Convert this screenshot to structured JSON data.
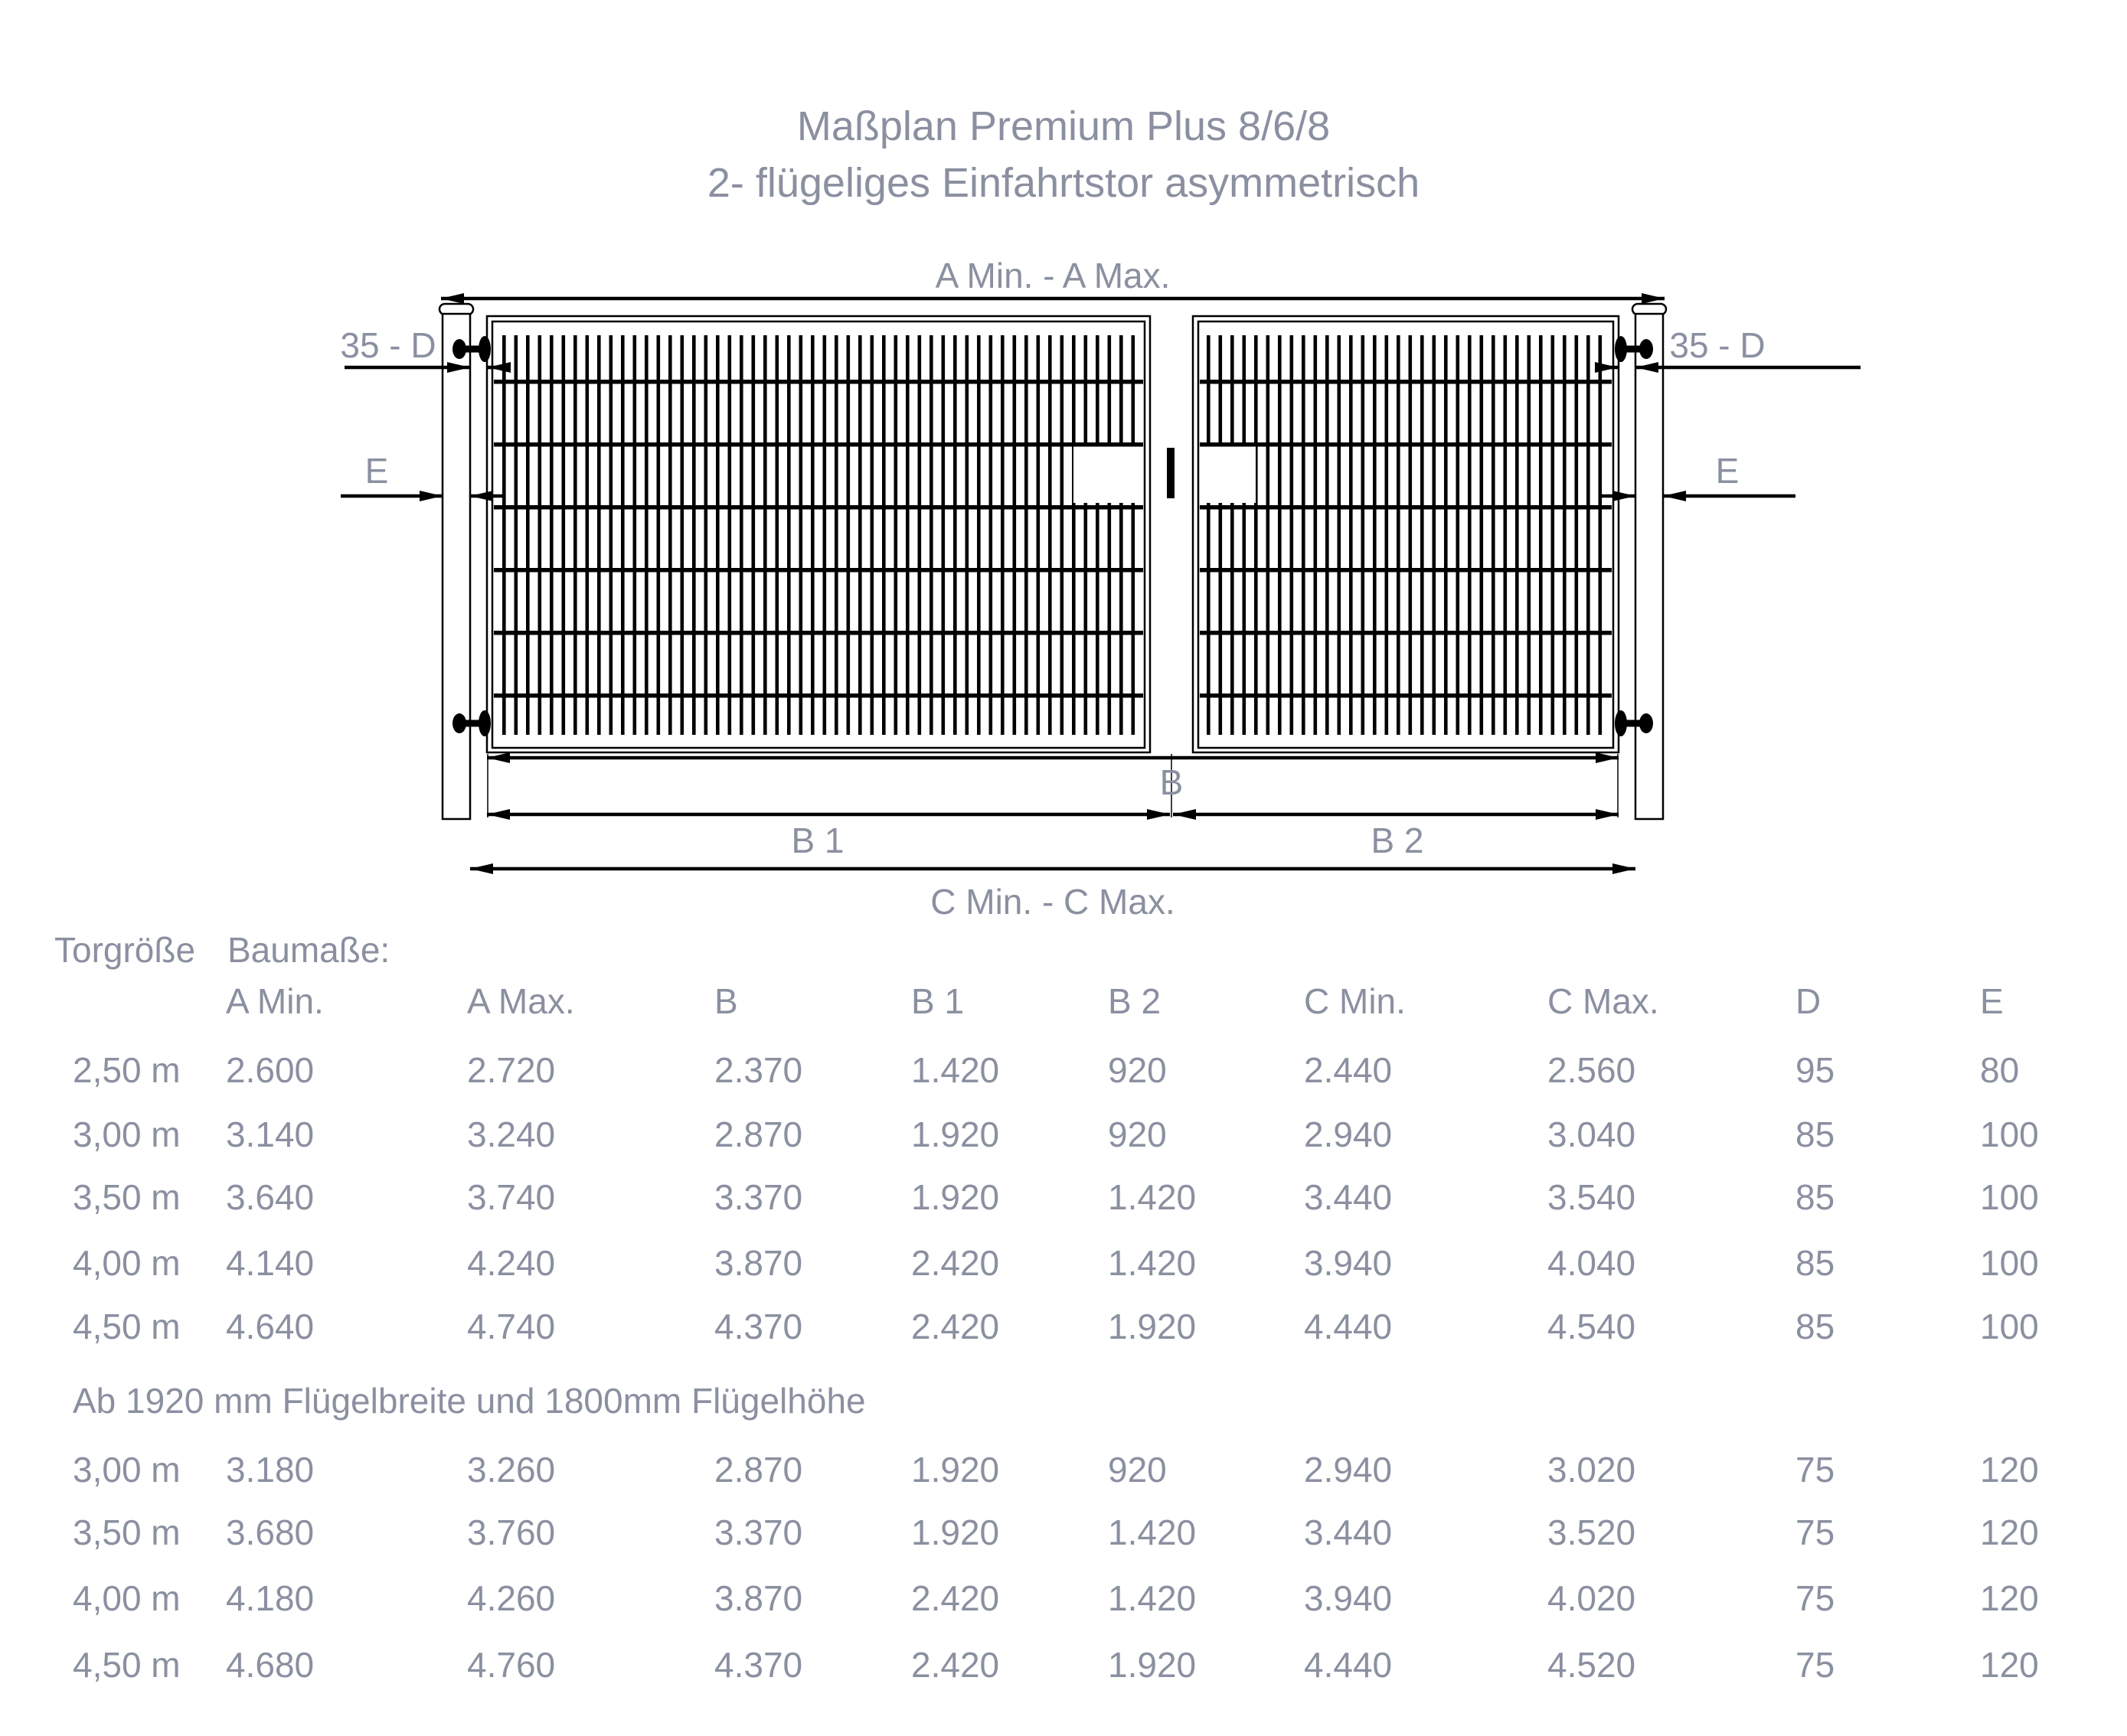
{
  "title": {
    "line1": "Maßplan Premium Plus 8/6/8",
    "line2": "2- flügeliges Einfahrtstor asymmetrisch"
  },
  "diagram": {
    "labels": {
      "a": "A Min. - A Max.",
      "d_left": "35 - D",
      "d_right": "35 - D",
      "e_left": "E",
      "e_right": "E",
      "b": "B",
      "b1": "B 1",
      "b2": "B 2",
      "c": "C Min. - C Max."
    }
  },
  "table": {
    "header_group": {
      "col1": "Torgröße",
      "col2": "Baumaße:"
    },
    "columns": [
      "A Min.",
      "A Max.",
      "B",
      "B 1",
      "B 2",
      "C Min.",
      "C Max.",
      "D",
      "E"
    ],
    "rows_group1": [
      {
        "size": "2,50 m",
        "values": [
          "2.600",
          "2.720",
          "2.370",
          "1.420",
          "920",
          "2.440",
          "2.560",
          "95",
          "80"
        ]
      },
      {
        "size": "3,00 m",
        "values": [
          "3.140",
          "3.240",
          "2.870",
          "1.920",
          "920",
          "2.940",
          "3.040",
          "85",
          "100"
        ]
      },
      {
        "size": "3,50 m",
        "values": [
          "3.640",
          "3.740",
          "3.370",
          "1.920",
          "1.420",
          "3.440",
          "3.540",
          "85",
          "100"
        ]
      },
      {
        "size": "4,00 m",
        "values": [
          "4.140",
          "4.240",
          "3.870",
          "2.420",
          "1.420",
          "3.940",
          "4.040",
          "85",
          "100"
        ]
      },
      {
        "size": "4,50 m",
        "values": [
          "4.640",
          "4.740",
          "4.370",
          "2.420",
          "1.920",
          "4.440",
          "4.540",
          "85",
          "100"
        ]
      }
    ],
    "note": "Ab 1920 mm Flügelbreite und 1800mm Flügelhöhe",
    "rows_group2": [
      {
        "size": "3,00 m",
        "values": [
          "3.180",
          "3.260",
          "2.870",
          "1.920",
          "920",
          "2.940",
          "3.020",
          "75",
          "120"
        ]
      },
      {
        "size": "3,50 m",
        "values": [
          "3.680",
          "3.760",
          "3.370",
          "1.920",
          "1.420",
          "3.440",
          "3.520",
          "75",
          "120"
        ]
      },
      {
        "size": "4,00 m",
        "values": [
          "4.180",
          "4.260",
          "3.870",
          "2.420",
          "1.420",
          "3.940",
          "4.020",
          "75",
          "120"
        ]
      },
      {
        "size": "4,50 m",
        "values": [
          "4.680",
          "4.760",
          "4.370",
          "2.420",
          "1.920",
          "4.440",
          "4.520",
          "75",
          "120"
        ]
      }
    ]
  },
  "colors": {
    "text_gray": "#8a90a0",
    "line_black": "#000000"
  }
}
